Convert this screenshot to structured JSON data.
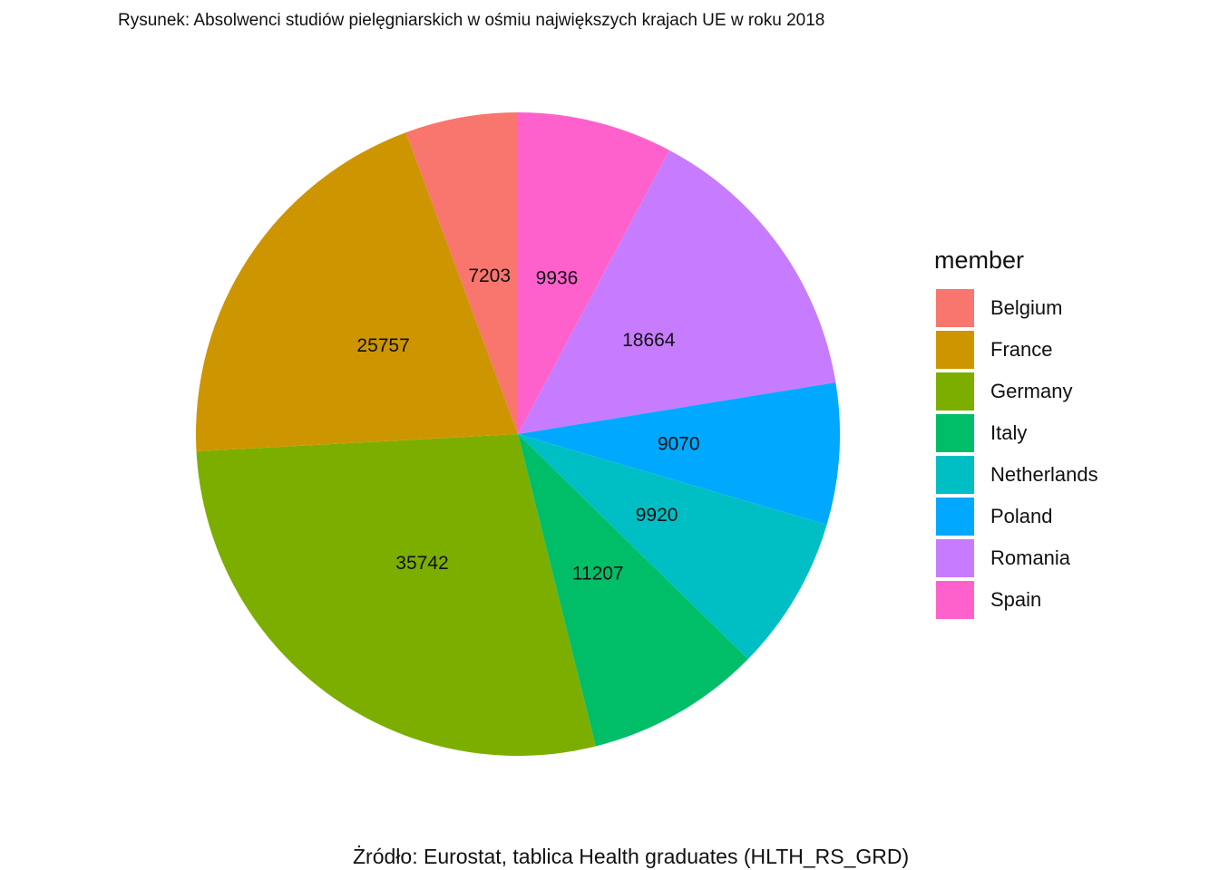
{
  "chart_data": {
    "type": "pie",
    "title": "Rysunek: Absolwenci studiów pielęgniarskich w ośmiu największych krajach UE w roku 2018",
    "caption": "Żródło: Eurostat, tablica Health graduates (HLTH_RS_GRD)",
    "legend_title": "member",
    "legend_position": "right",
    "categories": [
      "Belgium",
      "France",
      "Germany",
      "Italy",
      "Netherlands",
      "Poland",
      "Romania",
      "Spain"
    ],
    "values": [
      7203,
      25757,
      35742,
      11207,
      9920,
      9070,
      18664,
      9936
    ],
    "colors": [
      "#F8766D",
      "#CD9600",
      "#7CAE00",
      "#00BE67",
      "#00BFC4",
      "#00A9FF",
      "#C77CFF",
      "#FF61CC"
    ]
  }
}
